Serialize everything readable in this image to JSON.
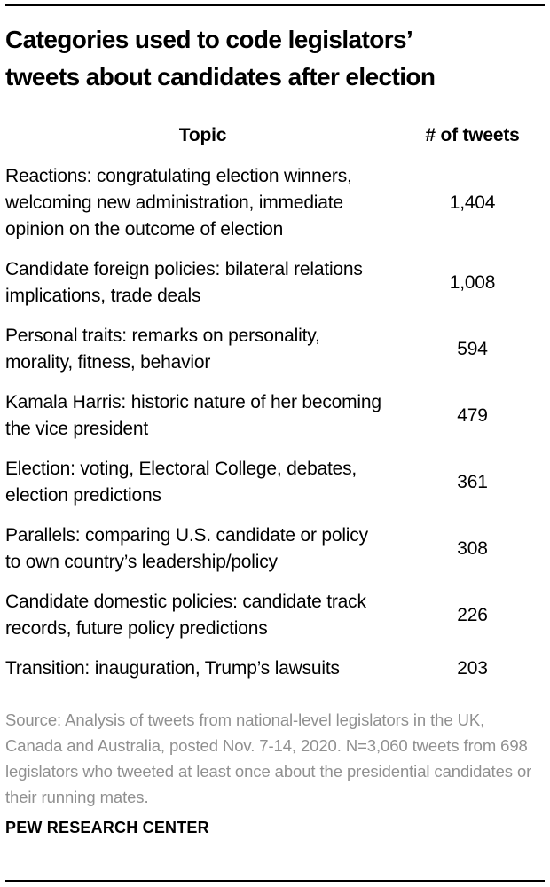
{
  "chart_data": {
    "type": "table",
    "title": "Categories used to code legislators’ tweets about candidates after election",
    "columns": [
      "Topic",
      "# of tweets"
    ],
    "rows": [
      {
        "topic": "Reactions: congratulating election winners, welcoming new administration, immediate opinion on the outcome of election",
        "tweets": "1,404"
      },
      {
        "topic": "Candidate foreign policies: bilateral relations implications, trade deals",
        "tweets": "1,008"
      },
      {
        "topic": "Personal traits: remarks on personality, morality, fitness, behavior",
        "tweets": "594"
      },
      {
        "topic": "Kamala Harris: historic nature of her becoming the vice president",
        "tweets": "479"
      },
      {
        "topic": "Election: voting, Electoral College, debates, election predictions",
        "tweets": "361"
      },
      {
        "topic": "Parallels: comparing U.S. candidate or policy to own country’s leadership/policy",
        "tweets": "308"
      },
      {
        "topic": "Candidate domestic policies: candidate track records, future policy predictions",
        "tweets": "226"
      },
      {
        "topic": "Transition: inauguration, Trump’s lawsuits",
        "tweets": "203"
      }
    ]
  },
  "title": {
    "line1": "Categories used to code legislators’",
    "line2": "tweets about candidates after election"
  },
  "source": "Source: Analysis of tweets from national-level legislators in the UK, Canada and Australia, posted Nov. 7-14, 2020. N=3,060 tweets from 698 legislators who tweeted at least once about the presidential candidates or their running mates.",
  "footer": "PEW RESEARCH CENTER",
  "colors": {
    "text": "#000000",
    "source_text": "#909090",
    "rule": "#000000",
    "background": "#ffffff"
  }
}
